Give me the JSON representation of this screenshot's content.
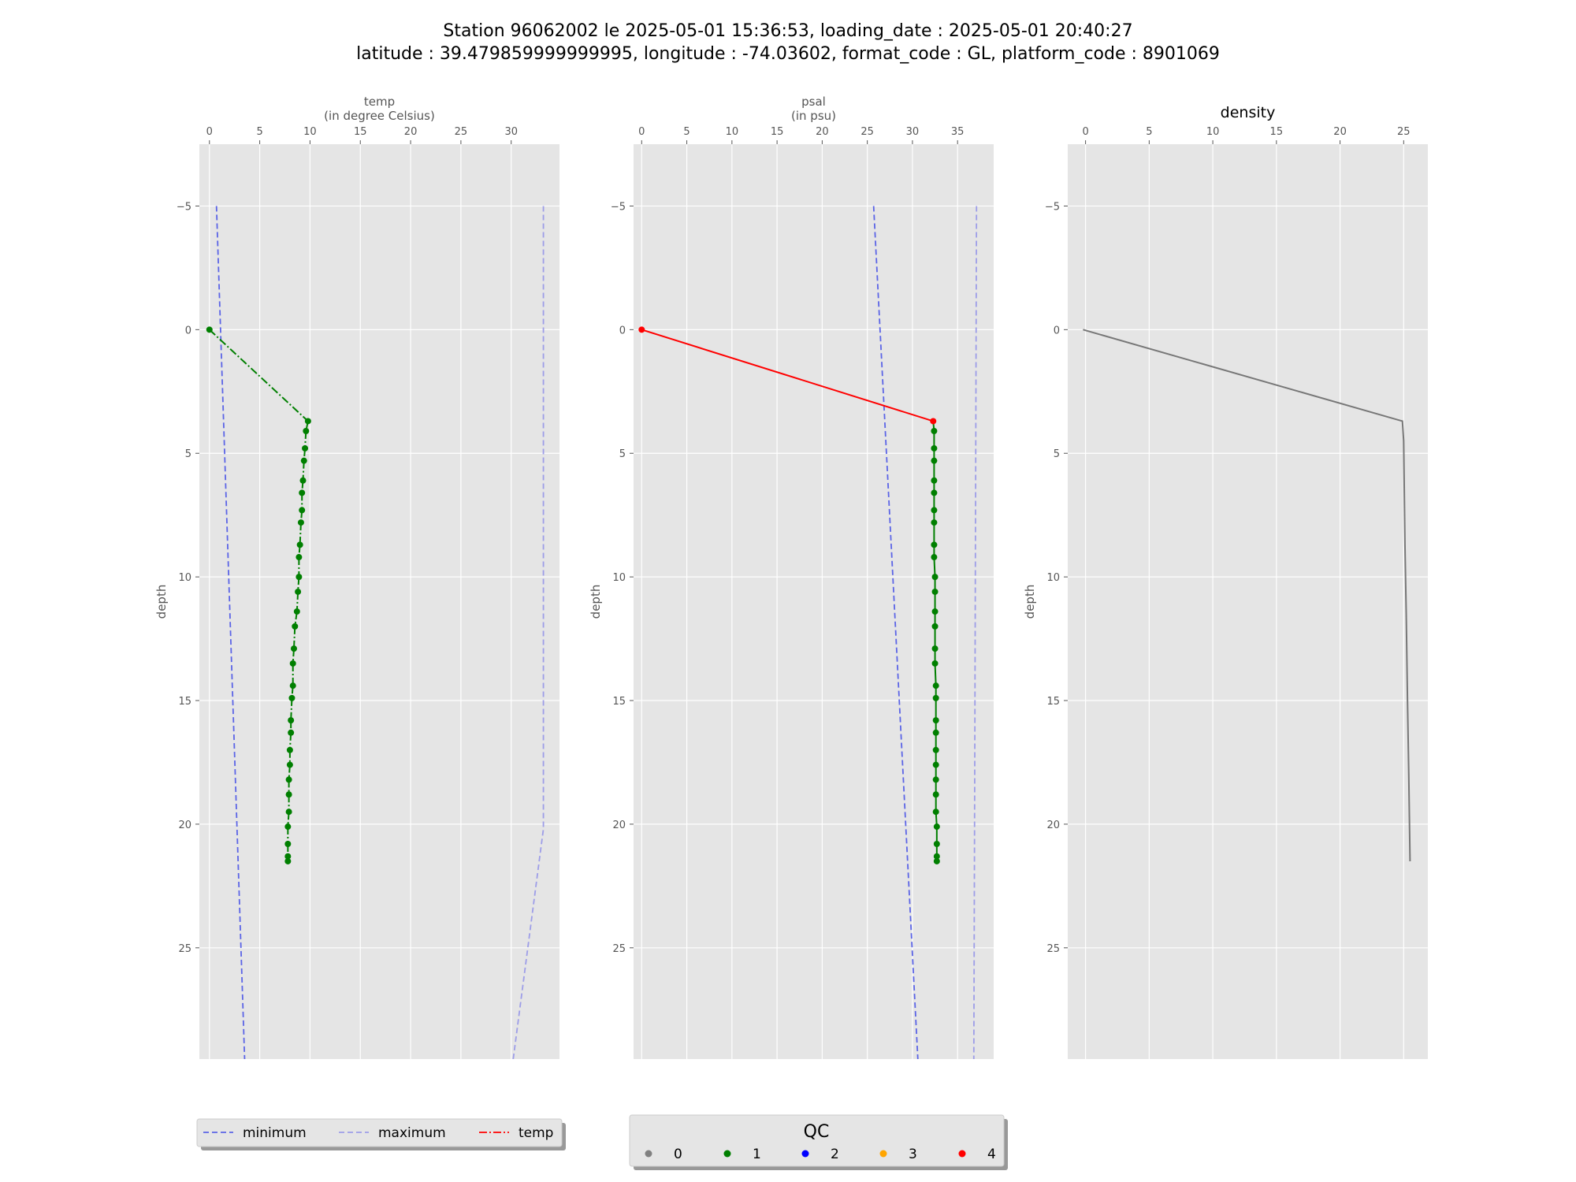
{
  "figure": {
    "title_line1": "Station 96062002 le 2025-05-01 15:36:53, loading_date : 2025-05-01 20:40:27",
    "title_line2": "latitude : 39.479859999999995, longitude : -74.03602, format_code : GL, platform_code : 8901069"
  },
  "colors": {
    "background": "#e5e5e5",
    "grid": "#ffffff",
    "minimum": "#5b64e6",
    "maximum": "#9d9de8",
    "qc0": "#808080",
    "qc1": "#007f00",
    "qc2": "#0000ff",
    "qc3": "#ffa500",
    "qc4": "#ff0000",
    "density_line": "#777777"
  },
  "chart_data": [
    {
      "type": "line",
      "panel": "temp",
      "xlabel_line1": "temp",
      "xlabel_line2": "(in degree Celsius)",
      "title": "",
      "ylabel": "depth",
      "xlim": [
        -1,
        34.8
      ],
      "ylim": [
        29.5,
        -7.5
      ],
      "xticks": [
        0,
        5,
        10,
        15,
        20,
        25,
        30
      ],
      "yticks": [
        -5,
        0,
        5,
        10,
        15,
        20,
        25
      ],
      "minimum": {
        "x": [
          0.7,
          3.5
        ],
        "depth": [
          -5,
          29.5
        ]
      },
      "maximum": {
        "x": [
          33.2,
          33.2,
          30.2
        ],
        "depth": [
          -5,
          20.2,
          29.5
        ]
      },
      "series": [
        {
          "depth": [
            0,
            3.7,
            4.1,
            4.8,
            5.3,
            6.1,
            6.6,
            7.3,
            7.8,
            8.7,
            9.2,
            10.0,
            10.6,
            11.4,
            12.0,
            12.9,
            13.5,
            14.4,
            14.9,
            15.8,
            16.3,
            17.0,
            17.6,
            18.2,
            18.8,
            19.5,
            20.1,
            20.8,
            21.3,
            21.5
          ],
          "value": [
            0.0,
            9.8,
            9.6,
            9.5,
            9.4,
            9.3,
            9.2,
            9.2,
            9.1,
            9.0,
            8.9,
            8.9,
            8.8,
            8.7,
            8.5,
            8.4,
            8.3,
            8.3,
            8.2,
            8.1,
            8.1,
            8.0,
            8.0,
            7.9,
            7.9,
            7.9,
            7.8,
            7.8,
            7.8,
            7.8
          ],
          "qc": [
            1,
            1,
            1,
            1,
            1,
            1,
            1,
            1,
            1,
            1,
            1,
            1,
            1,
            1,
            1,
            1,
            1,
            1,
            1,
            1,
            1,
            1,
            1,
            1,
            1,
            1,
            1,
            1,
            1,
            1
          ]
        }
      ]
    },
    {
      "type": "line",
      "panel": "psal",
      "xlabel_line1": "psal",
      "xlabel_line2": "(in psu)",
      "title": "",
      "ylabel": "depth",
      "xlim": [
        -0.9,
        39.0
      ],
      "ylim": [
        29.5,
        -7.5
      ],
      "xticks": [
        0,
        5,
        10,
        15,
        20,
        25,
        30,
        35
      ],
      "yticks": [
        -5,
        0,
        5,
        10,
        15,
        20,
        25
      ],
      "minimum": {
        "x": [
          25.7,
          30.6
        ],
        "depth": [
          -5,
          29.5
        ]
      },
      "maximum": {
        "x": [
          37.1,
          36.8
        ],
        "depth": [
          -5,
          29.5
        ]
      },
      "series": [
        {
          "depth": [
            0,
            3.7,
            4.1,
            4.8,
            5.3,
            6.1,
            6.6,
            7.3,
            7.8,
            8.7,
            9.2,
            10.0,
            10.6,
            11.4,
            12.0,
            12.9,
            13.5,
            14.4,
            14.9,
            15.8,
            16.3,
            17.0,
            17.6,
            18.2,
            18.8,
            19.5,
            20.1,
            20.8,
            21.3,
            21.5
          ],
          "value": [
            0.0,
            32.3,
            32.4,
            32.4,
            32.4,
            32.4,
            32.4,
            32.4,
            32.4,
            32.4,
            32.4,
            32.5,
            32.5,
            32.5,
            32.5,
            32.5,
            32.5,
            32.6,
            32.6,
            32.6,
            32.6,
            32.6,
            32.6,
            32.6,
            32.6,
            32.6,
            32.7,
            32.7,
            32.7,
            32.7
          ],
          "qc": [
            4,
            4,
            1,
            1,
            1,
            1,
            1,
            1,
            1,
            1,
            1,
            1,
            1,
            1,
            1,
            1,
            1,
            1,
            1,
            1,
            1,
            1,
            1,
            1,
            1,
            1,
            1,
            1,
            1,
            1
          ]
        }
      ]
    },
    {
      "type": "line",
      "panel": "density",
      "title": "density",
      "ylabel": "depth",
      "xlim": [
        -1.4,
        26.9
      ],
      "ylim": [
        29.5,
        -7.5
      ],
      "xticks": [
        0,
        5,
        10,
        15,
        20,
        25
      ],
      "yticks": [
        -5,
        0,
        5,
        10,
        15,
        20,
        25
      ],
      "series": [
        {
          "depth": [
            0,
            3.7,
            4.5,
            8.7,
            11.5,
            15.0,
            18.0,
            21.5
          ],
          "value": [
            -0.2,
            24.9,
            25.0,
            25.1,
            25.2,
            25.3,
            25.4,
            25.5
          ]
        }
      ]
    }
  ],
  "legend_lines": {
    "items": [
      {
        "label": "minimum",
        "style": "minimum"
      },
      {
        "label": "maximum",
        "style": "maximum"
      },
      {
        "label": "temp",
        "style": "temp"
      }
    ]
  },
  "legend_qc": {
    "title": "QC",
    "items": [
      {
        "label": "0",
        "color": "#808080"
      },
      {
        "label": "1",
        "color": "#007f00"
      },
      {
        "label": "2",
        "color": "#0000ff"
      },
      {
        "label": "3",
        "color": "#ffa500"
      },
      {
        "label": "4",
        "color": "#ff0000"
      }
    ]
  }
}
